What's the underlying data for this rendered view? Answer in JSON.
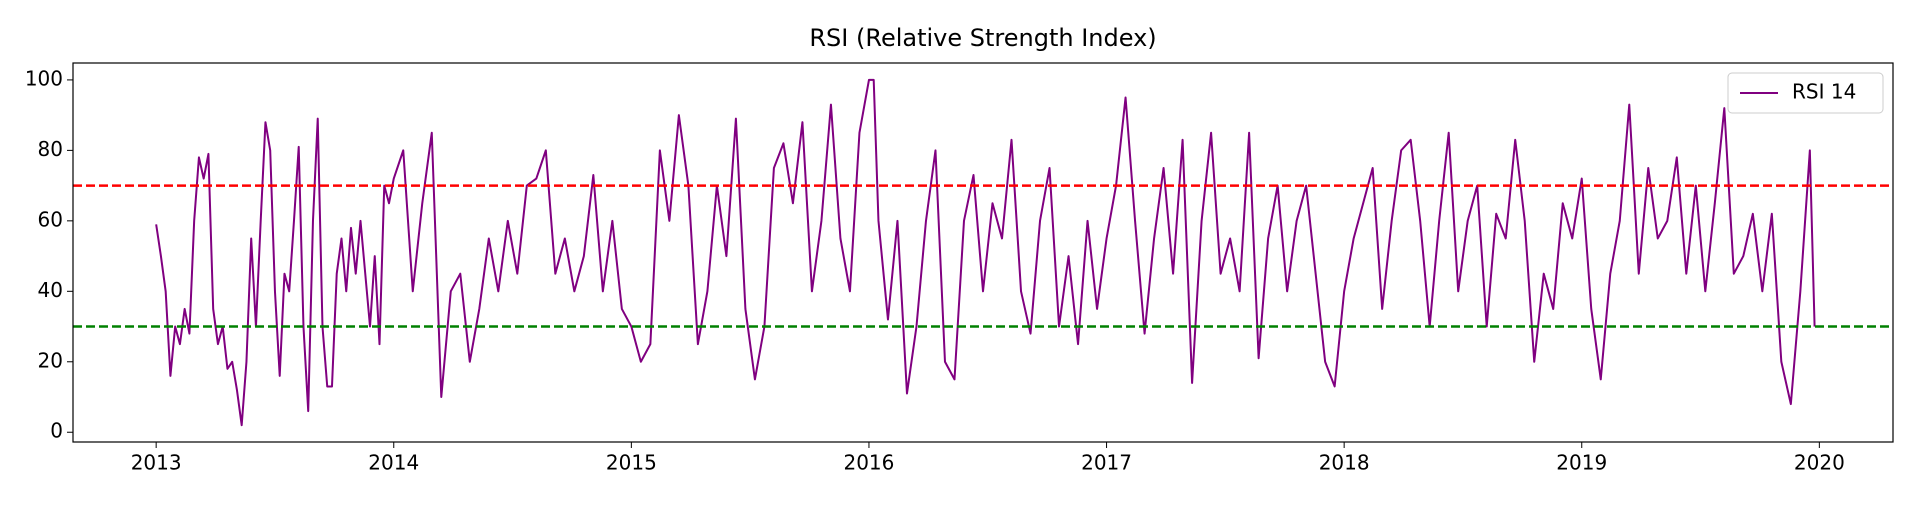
{
  "chart_data": {
    "type": "line",
    "title": "RSI (Relative Strength Index)",
    "x": [
      2013.0,
      2013.02,
      2013.04,
      2013.06,
      2013.08,
      2013.1,
      2013.12,
      2013.14,
      2013.16,
      2013.18,
      2013.2,
      2013.22,
      2013.24,
      2013.26,
      2013.28,
      2013.3,
      2013.32,
      2013.34,
      2013.36,
      2013.38,
      2013.4,
      2013.42,
      2013.44,
      2013.46,
      2013.48,
      2013.5,
      2013.52,
      2013.54,
      2013.56,
      2013.58,
      2013.6,
      2013.62,
      2013.64,
      2013.66,
      2013.68,
      2013.7,
      2013.72,
      2013.74,
      2013.76,
      2013.78,
      2013.8,
      2013.82,
      2013.84,
      2013.86,
      2013.88,
      2013.9,
      2013.92,
      2013.94,
      2013.96,
      2013.98,
      2014.0,
      2014.04,
      2014.08,
      2014.12,
      2014.16,
      2014.2,
      2014.24,
      2014.28,
      2014.32,
      2014.36,
      2014.4,
      2014.44,
      2014.48,
      2014.52,
      2014.56,
      2014.6,
      2014.64,
      2014.68,
      2014.72,
      2014.76,
      2014.8,
      2014.84,
      2014.88,
      2014.92,
      2014.96,
      2015.0,
      2015.04,
      2015.08,
      2015.12,
      2015.16,
      2015.2,
      2015.24,
      2015.28,
      2015.32,
      2015.36,
      2015.4,
      2015.44,
      2015.48,
      2015.52,
      2015.56,
      2015.6,
      2015.64,
      2015.68,
      2015.72,
      2015.76,
      2015.8,
      2015.84,
      2015.88,
      2015.92,
      2015.96,
      2016.0,
      2016.02,
      2016.04,
      2016.08,
      2016.12,
      2016.16,
      2016.2,
      2016.24,
      2016.28,
      2016.32,
      2016.36,
      2016.4,
      2016.44,
      2016.48,
      2016.52,
      2016.56,
      2016.6,
      2016.64,
      2016.68,
      2016.72,
      2016.76,
      2016.8,
      2016.84,
      2016.88,
      2016.92,
      2016.96,
      2017.0,
      2017.04,
      2017.08,
      2017.12,
      2017.16,
      2017.2,
      2017.24,
      2017.28,
      2017.32,
      2017.36,
      2017.4,
      2017.44,
      2017.48,
      2017.52,
      2017.56,
      2017.6,
      2017.64,
      2017.68,
      2017.72,
      2017.76,
      2017.8,
      2017.84,
      2017.88,
      2017.92,
      2017.96,
      2018.0,
      2018.04,
      2018.08,
      2018.12,
      2018.16,
      2018.2,
      2018.24,
      2018.28,
      2018.32,
      2018.36,
      2018.4,
      2018.44,
      2018.48,
      2018.52,
      2018.56,
      2018.6,
      2018.64,
      2018.68,
      2018.72,
      2018.76,
      2018.8,
      2018.84,
      2018.88,
      2018.92,
      2018.96,
      2019.0,
      2019.04,
      2019.08,
      2019.12,
      2019.16,
      2019.2,
      2019.24,
      2019.28,
      2019.32,
      2019.36,
      2019.4,
      2019.44,
      2019.48,
      2019.52,
      2019.56,
      2019.6,
      2019.64,
      2019.68,
      2019.72,
      2019.76,
      2019.8,
      2019.84,
      2019.88,
      2019.92,
      2019.96,
      2019.98
    ],
    "series": [
      {
        "name": "RSI 14",
        "color": "#800080",
        "values": [
          59,
          50,
          40,
          16,
          30,
          25,
          35,
          28,
          60,
          78,
          72,
          79,
          35,
          25,
          30,
          18,
          20,
          12,
          2,
          20,
          55,
          30,
          60,
          88,
          80,
          40,
          16,
          45,
          40,
          60,
          81,
          30,
          6,
          60,
          89,
          30,
          13,
          13,
          45,
          55,
          40,
          58,
          45,
          60,
          45,
          30,
          50,
          25,
          70,
          65,
          72,
          80,
          40,
          65,
          85,
          10,
          40,
          45,
          20,
          35,
          55,
          40,
          60,
          45,
          70,
          72,
          80,
          45,
          55,
          40,
          50,
          73,
          40,
          60,
          35,
          30,
          20,
          25,
          80,
          60,
          90,
          70,
          25,
          40,
          70,
          50,
          89,
          35,
          15,
          30,
          75,
          82,
          65,
          88,
          40,
          60,
          93,
          55,
          40,
          85,
          100,
          100,
          60,
          32,
          60,
          11,
          30,
          60,
          80,
          20,
          15,
          60,
          73,
          40,
          65,
          55,
          83,
          40,
          28,
          60,
          75,
          30,
          50,
          25,
          60,
          35,
          55,
          70,
          95,
          60,
          28,
          55,
          75,
          45,
          83,
          14,
          60,
          85,
          45,
          55,
          40,
          85,
          21,
          55,
          70,
          40,
          60,
          70,
          45,
          20,
          13,
          40,
          55,
          65,
          75,
          35,
          60,
          80,
          83,
          60,
          30,
          60,
          85,
          40,
          60,
          70,
          30,
          62,
          55,
          83,
          60,
          20,
          45,
          35,
          65,
          55,
          72,
          35,
          15,
          45,
          60,
          93,
          45,
          75,
          55,
          60,
          78,
          45,
          70,
          40,
          65,
          92,
          45,
          50,
          62,
          40,
          62,
          20,
          8,
          40,
          80,
          30
        ]
      }
    ],
    "hlines": [
      {
        "value": 70,
        "color": "red"
      },
      {
        "value": 30,
        "color": "green"
      }
    ],
    "xlim": [
      2012.65,
      2020.31
    ],
    "xticks": [
      2013,
      2014,
      2015,
      2016,
      2017,
      2018,
      2019,
      2020
    ],
    "ylim": [
      -2.77,
      104.8
    ],
    "yticks": [
      0,
      20,
      40,
      60,
      80,
      100
    ],
    "legend": "upper right"
  }
}
